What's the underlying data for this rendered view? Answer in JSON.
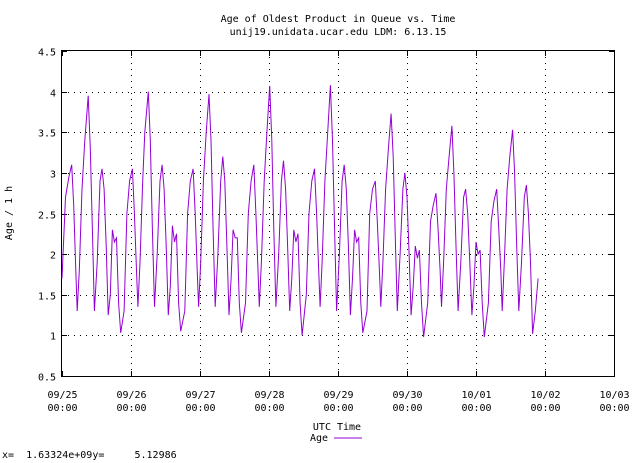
{
  "chart_data": {
    "type": "line",
    "title": "Age of Oldest Product in Queue vs. Time",
    "subtitle": "unij19.unidata.ucar.edu LDM: 6.13.15",
    "xlabel": "UTC Time",
    "ylabel": "Age / 1 h",
    "ylim": [
      0.5,
      4.5
    ],
    "yticks": [
      "0.5",
      "1",
      "1.5",
      "2",
      "2.5",
      "3",
      "3.5",
      "4",
      "4.5"
    ],
    "xlim": [
      "09/25 00:00",
      "10/03 00:00"
    ],
    "xticks": [
      {
        "date": "09/25",
        "time": "00:00"
      },
      {
        "date": "09/26",
        "time": "00:00"
      },
      {
        "date": "09/27",
        "time": "00:00"
      },
      {
        "date": "09/28",
        "time": "00:00"
      },
      {
        "date": "09/29",
        "time": "00:00"
      },
      {
        "date": "09/30",
        "time": "00:00"
      },
      {
        "date": "10/01",
        "time": "00:00"
      },
      {
        "date": "10/02",
        "time": "00:00"
      },
      {
        "date": "10/03",
        "time": "00:00"
      }
    ],
    "grid": true,
    "legend_position": "bottom-center",
    "series": [
      {
        "name": "Age",
        "color": "#9400d3",
        "x_unit": "days since 09/25 00:00",
        "points": [
          [
            0.0,
            1.7
          ],
          [
            0.05,
            2.7
          ],
          [
            0.1,
            2.95
          ],
          [
            0.14,
            3.1
          ],
          [
            0.17,
            2.6
          ],
          [
            0.2,
            1.8
          ],
          [
            0.22,
            1.3
          ],
          [
            0.25,
            1.8
          ],
          [
            0.29,
            2.8
          ],
          [
            0.33,
            3.4
          ],
          [
            0.38,
            3.95
          ],
          [
            0.41,
            3.3
          ],
          [
            0.44,
            2.3
          ],
          [
            0.47,
            1.3
          ],
          [
            0.51,
            1.9
          ],
          [
            0.55,
            2.9
          ],
          [
            0.58,
            3.05
          ],
          [
            0.61,
            2.8
          ],
          [
            0.64,
            2.1
          ],
          [
            0.67,
            1.25
          ],
          [
            0.7,
            1.5
          ],
          [
            0.73,
            2.3
          ],
          [
            0.76,
            2.15
          ],
          [
            0.79,
            2.2
          ],
          [
            0.82,
            1.4
          ],
          [
            0.85,
            1.03
          ],
          [
            0.9,
            1.3
          ],
          [
            0.94,
            2.5
          ],
          [
            0.98,
            2.9
          ],
          [
            1.02,
            3.05
          ],
          [
            1.05,
            2.5
          ],
          [
            1.08,
            1.8
          ],
          [
            1.1,
            1.35
          ],
          [
            1.13,
            1.9
          ],
          [
            1.17,
            2.9
          ],
          [
            1.2,
            3.5
          ],
          [
            1.25,
            4.0
          ],
          [
            1.28,
            3.4
          ],
          [
            1.31,
            2.3
          ],
          [
            1.34,
            1.35
          ],
          [
            1.38,
            2.0
          ],
          [
            1.42,
            2.9
          ],
          [
            1.45,
            3.1
          ],
          [
            1.48,
            2.8
          ],
          [
            1.51,
            2.1
          ],
          [
            1.54,
            1.25
          ],
          [
            1.57,
            1.6
          ],
          [
            1.6,
            2.35
          ],
          [
            1.63,
            2.15
          ],
          [
            1.66,
            2.25
          ],
          [
            1.69,
            1.4
          ],
          [
            1.72,
            1.05
          ],
          [
            1.78,
            1.3
          ],
          [
            1.82,
            2.5
          ],
          [
            1.86,
            2.9
          ],
          [
            1.9,
            3.05
          ],
          [
            1.93,
            2.5
          ],
          [
            1.96,
            1.8
          ],
          [
            1.98,
            1.35
          ],
          [
            2.01,
            1.9
          ],
          [
            2.05,
            2.9
          ],
          [
            2.09,
            3.5
          ],
          [
            2.13,
            3.97
          ],
          [
            2.16,
            3.4
          ],
          [
            2.19,
            2.3
          ],
          [
            2.22,
            1.35
          ],
          [
            2.26,
            2.0
          ],
          [
            2.3,
            2.9
          ],
          [
            2.33,
            3.2
          ],
          [
            2.36,
            2.9
          ],
          [
            2.39,
            2.1
          ],
          [
            2.42,
            1.25
          ],
          [
            2.45,
            1.7
          ],
          [
            2.48,
            2.3
          ],
          [
            2.51,
            2.2
          ],
          [
            2.54,
            2.2
          ],
          [
            2.57,
            1.4
          ],
          [
            2.6,
            1.03
          ],
          [
            2.66,
            1.4
          ],
          [
            2.7,
            2.5
          ],
          [
            2.74,
            2.9
          ],
          [
            2.78,
            3.1
          ],
          [
            2.81,
            2.5
          ],
          [
            2.84,
            1.8
          ],
          [
            2.86,
            1.35
          ],
          [
            2.89,
            1.9
          ],
          [
            2.93,
            2.9
          ],
          [
            2.97,
            3.5
          ],
          [
            3.01,
            4.07
          ],
          [
            3.04,
            3.4
          ],
          [
            3.07,
            2.3
          ],
          [
            3.1,
            1.35
          ],
          [
            3.14,
            2.0
          ],
          [
            3.18,
            2.9
          ],
          [
            3.21,
            3.15
          ],
          [
            3.24,
            2.8
          ],
          [
            3.27,
            2.1
          ],
          [
            3.3,
            1.3
          ],
          [
            3.33,
            1.7
          ],
          [
            3.36,
            2.3
          ],
          [
            3.39,
            2.15
          ],
          [
            3.42,
            2.25
          ],
          [
            3.45,
            1.4
          ],
          [
            3.48,
            1.0
          ],
          [
            3.54,
            1.5
          ],
          [
            3.58,
            2.5
          ],
          [
            3.62,
            2.9
          ],
          [
            3.66,
            3.05
          ],
          [
            3.69,
            2.5
          ],
          [
            3.72,
            1.8
          ],
          [
            3.74,
            1.35
          ],
          [
            3.77,
            1.9
          ],
          [
            3.81,
            2.9
          ],
          [
            3.85,
            3.5
          ],
          [
            3.89,
            4.08
          ],
          [
            3.92,
            3.4
          ],
          [
            3.95,
            2.3
          ],
          [
            3.98,
            1.3
          ],
          [
            4.02,
            2.0
          ],
          [
            4.06,
            2.9
          ],
          [
            4.09,
            3.1
          ],
          [
            4.12,
            2.8
          ],
          [
            4.15,
            2.1
          ],
          [
            4.18,
            1.25
          ],
          [
            4.21,
            1.7
          ],
          [
            4.24,
            2.3
          ],
          [
            4.27,
            2.15
          ],
          [
            4.3,
            2.2
          ],
          [
            4.33,
            1.4
          ],
          [
            4.36,
            1.03
          ],
          [
            4.42,
            1.3
          ],
          [
            4.46,
            2.5
          ],
          [
            4.5,
            2.8
          ],
          [
            4.54,
            2.9
          ],
          [
            4.57,
            2.4
          ],
          [
            4.6,
            1.8
          ],
          [
            4.62,
            1.35
          ],
          [
            4.65,
            1.9
          ],
          [
            4.69,
            2.8
          ],
          [
            4.73,
            3.3
          ],
          [
            4.77,
            3.73
          ],
          [
            4.8,
            3.2
          ],
          [
            4.83,
            2.2
          ],
          [
            4.86,
            1.3
          ],
          [
            4.9,
            2.0
          ],
          [
            4.94,
            2.8
          ],
          [
            4.97,
            3.0
          ],
          [
            5.0,
            2.7
          ],
          [
            5.03,
            2.0
          ],
          [
            5.06,
            1.25
          ],
          [
            5.09,
            1.6
          ],
          [
            5.12,
            2.1
          ],
          [
            5.15,
            1.95
          ],
          [
            5.18,
            2.05
          ],
          [
            5.21,
            1.4
          ],
          [
            5.24,
            0.98
          ],
          [
            5.3,
            1.4
          ],
          [
            5.34,
            2.4
          ],
          [
            5.38,
            2.6
          ],
          [
            5.42,
            2.75
          ],
          [
            5.45,
            2.3
          ],
          [
            5.48,
            1.8
          ],
          [
            5.5,
            1.35
          ],
          [
            5.53,
            1.9
          ],
          [
            5.57,
            2.8
          ],
          [
            5.61,
            3.2
          ],
          [
            5.65,
            3.58
          ],
          [
            5.68,
            3.0
          ],
          [
            5.71,
            2.1
          ],
          [
            5.74,
            1.3
          ],
          [
            5.78,
            1.9
          ],
          [
            5.82,
            2.7
          ],
          [
            5.85,
            2.8
          ],
          [
            5.88,
            2.5
          ],
          [
            5.91,
            1.9
          ],
          [
            5.94,
            1.25
          ],
          [
            5.97,
            1.6
          ],
          [
            6.0,
            2.15
          ],
          [
            6.03,
            2.0
          ],
          [
            6.06,
            2.05
          ],
          [
            6.09,
            1.4
          ],
          [
            6.12,
            0.98
          ],
          [
            6.18,
            1.4
          ],
          [
            6.22,
            2.4
          ],
          [
            6.26,
            2.65
          ],
          [
            6.3,
            2.8
          ],
          [
            6.33,
            2.3
          ],
          [
            6.36,
            1.8
          ],
          [
            6.38,
            1.3
          ],
          [
            6.41,
            1.9
          ],
          [
            6.45,
            2.8
          ],
          [
            6.49,
            3.2
          ],
          [
            6.53,
            3.53
          ],
          [
            6.56,
            3.0
          ],
          [
            6.59,
            2.1
          ],
          [
            6.62,
            1.3
          ],
          [
            6.66,
            1.9
          ],
          [
            6.7,
            2.7
          ],
          [
            6.73,
            2.85
          ],
          [
            6.76,
            2.5
          ],
          [
            6.79,
            1.9
          ],
          [
            6.82,
            1.02
          ],
          [
            6.86,
            1.3
          ],
          [
            6.9,
            1.7
          ]
        ]
      }
    ]
  },
  "readout": {
    "x_label": "x=",
    "x_value": "1.63324e+09",
    "y_label": "y=",
    "y_value": "5.12986"
  }
}
